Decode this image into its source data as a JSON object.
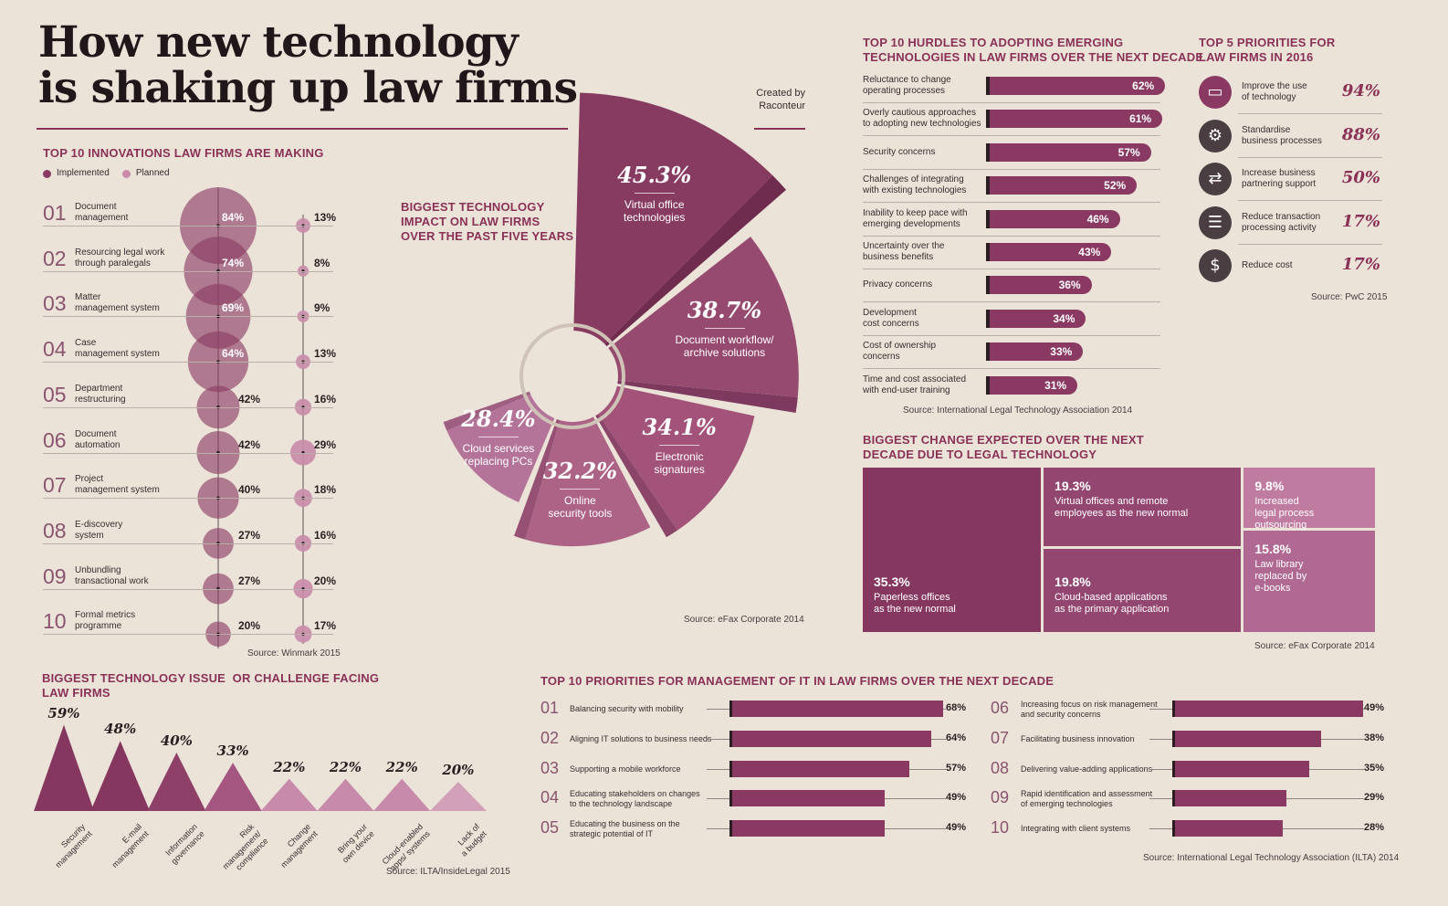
{
  "title_line1": "How new technology",
  "title_line2": "is shaking up law firms",
  "credit_line1": "Created by",
  "credit_line2": "Raconteur",
  "colors": {
    "dark": "#8a3a62",
    "mid": "#a5577f",
    "light": "#c98aab",
    "bg": "#ebe3d8"
  },
  "innovations": {
    "title": "Top 10 innovations law firms are making",
    "legend_implemented": "Implemented",
    "legend_planned": "Planned",
    "source": "Source: Winmark 2015",
    "items": [
      {
        "num": "01",
        "l1": "Document",
        "l2": "management",
        "imp": "84%",
        "plan": "13%"
      },
      {
        "num": "02",
        "l1": "Resourcing legal work",
        "l2": "through paralegals",
        "imp": "74%",
        "plan": "8%"
      },
      {
        "num": "03",
        "l1": "Matter",
        "l2": "management system",
        "imp": "69%",
        "plan": "9%"
      },
      {
        "num": "04",
        "l1": "Case",
        "l2": "management system",
        "imp": "64%",
        "plan": "13%"
      },
      {
        "num": "05",
        "l1": "Department",
        "l2": "restructuring",
        "imp": "42%",
        "plan": "16%"
      },
      {
        "num": "06",
        "l1": "Document",
        "l2": "automation",
        "imp": "42%",
        "plan": "29%"
      },
      {
        "num": "07",
        "l1": "Project",
        "l2": "management system",
        "imp": "40%",
        "plan": "18%"
      },
      {
        "num": "08",
        "l1": "E-discovery",
        "l2": "system",
        "imp": "27%",
        "plan": "16%"
      },
      {
        "num": "09",
        "l1": "Unbundling",
        "l2": "transactional work",
        "imp": "27%",
        "plan": "20%"
      },
      {
        "num": "10",
        "l1": "Formal metrics",
        "l2": "programme",
        "imp": "20%",
        "plan": "17%"
      }
    ]
  },
  "impact": {
    "title_l1": "Biggest technology",
    "title_l2": "impact on law firms",
    "title_l3": "over the past five years",
    "source": "Source: eFax Corporate 2014",
    "slices": [
      {
        "value": "45.3%",
        "l1": "Virtual office",
        "l2": "technologies"
      },
      {
        "value": "38.7%",
        "l1": "Document workflow/",
        "l2": "archive solutions"
      },
      {
        "value": "34.1%",
        "l1": "Electronic",
        "l2": "signatures"
      },
      {
        "value": "32.2%",
        "l1": "Online",
        "l2": "security tools"
      },
      {
        "value": "28.4%",
        "l1": "Cloud services",
        "l2": "replacing PCs"
      }
    ]
  },
  "hurdles": {
    "title_l1": "Top 10 hurdles to adopting emerging",
    "title_l2": "technologies in law firms over the next decade",
    "source": "Source: International Legal Technology Association 2014",
    "items": [
      {
        "l1": "Reluctance to change",
        "l2": "operating processes",
        "label": "62%"
      },
      {
        "l1": "Overly cautious approaches",
        "l2": "to adopting new technologies",
        "label": "61%"
      },
      {
        "l1": "Security concerns",
        "l2": "",
        "label": "57%"
      },
      {
        "l1": "Challenges of integrating",
        "l2": "with existing technologies",
        "label": "52%"
      },
      {
        "l1": "Inability to keep pace with",
        "l2": "emerging developments",
        "label": "46%"
      },
      {
        "l1": "Uncertainty over the",
        "l2": "business benefits",
        "label": "43%"
      },
      {
        "l1": "Privacy concerns",
        "l2": "",
        "label": "36%"
      },
      {
        "l1": "Development",
        "l2": "cost concerns",
        "label": "34%"
      },
      {
        "l1": "Cost of ownership",
        "l2": "concerns",
        "label": "33%"
      },
      {
        "l1": "Time and cost associated",
        "l2": "with end-user training",
        "label": "31%"
      }
    ]
  },
  "priorities2016": {
    "title_l1": "Top 5 priorities for",
    "title_l2": "law firms in 2016",
    "source": "Source: PwC 2015",
    "items": [
      {
        "icon": "presentation-icon",
        "l1": "Improve the use",
        "l2": "of technology",
        "value": "94%"
      },
      {
        "icon": "gear-icon",
        "l1": "Standardise",
        "l2": "business processes",
        "value": "88%"
      },
      {
        "icon": "handshake-icon",
        "l1": "Increase business",
        "l2": "partnering support",
        "value": "50%"
      },
      {
        "icon": "document-icon",
        "l1": "Reduce transaction",
        "l2": "processing activity",
        "value": "17%"
      },
      {
        "icon": "money-bag-icon",
        "l1": "Reduce cost",
        "l2": "",
        "value": "17%"
      }
    ]
  },
  "change": {
    "title_l1": "Biggest change expected over the next",
    "title_l2": "decade due to legal technology",
    "source": "Source: eFax Corporate 2014",
    "tiles": [
      {
        "value": "35.3%",
        "l1": "Paperless offices",
        "l2": "as the new normal",
        "l3": ""
      },
      {
        "value": "19.3%",
        "l1": "Virtual offices and remote",
        "l2": "employees as the new normal",
        "l3": ""
      },
      {
        "value": "19.8%",
        "l1": "Cloud-based applications",
        "l2": "as the primary application",
        "l3": ""
      },
      {
        "value": "9.8%",
        "l1": "Increased",
        "l2": "legal process",
        "l3": "outsourcing"
      },
      {
        "value": "15.8%",
        "l1": "Law library",
        "l2": "replaced by",
        "l3": "e-books"
      }
    ]
  },
  "issues": {
    "title_l1": "Biggest technology issue  or challenge facing",
    "title_l2": "law firms",
    "source": "Source: ILTA/InsideLegal 2015",
    "items": [
      {
        "value": "59%",
        "l1": "Security",
        "l2": "management",
        "l3": ""
      },
      {
        "value": "48%",
        "l1": "E-mail",
        "l2": "management",
        "l3": ""
      },
      {
        "value": "40%",
        "l1": "Information",
        "l2": "governance",
        "l3": ""
      },
      {
        "value": "33%",
        "l1": "Risk",
        "l2": "management/",
        "l3": "compliance"
      },
      {
        "value": "22%",
        "l1": "Change",
        "l2": "management",
        "l3": ""
      },
      {
        "value": "22%",
        "l1": "Bring your",
        "l2": "own device",
        "l3": ""
      },
      {
        "value": "22%",
        "l1": "Cloud-enabled",
        "l2": "apps/ systems",
        "l3": ""
      },
      {
        "value": "20%",
        "l1": "Lack of",
        "l2": "a budget",
        "l3": ""
      }
    ]
  },
  "it_priorities": {
    "title": "Top 10 priorities for management of IT in law firms over the next decade",
    "source": "Source: International Legal Technology Association (ILTA) 2014",
    "items": [
      {
        "num": "01",
        "l1": "Balancing security with mobility",
        "l2": "",
        "label": "68%"
      },
      {
        "num": "02",
        "l1": "Aligning IT solutions to business needs",
        "l2": "",
        "label": "64%"
      },
      {
        "num": "03",
        "l1": "Supporting a mobile workforce",
        "l2": "",
        "label": "57%"
      },
      {
        "num": "04",
        "l1": "Educating stakeholders on changes",
        "l2": "to the technology landscape",
        "label": "49%"
      },
      {
        "num": "05",
        "l1": "Educating the business on the",
        "l2": "strategic potential of IT",
        "label": "49%"
      },
      {
        "num": "06",
        "l1": "Increasing focus on risk management",
        "l2": "and security concerns",
        "label": "49%"
      },
      {
        "num": "07",
        "l1": "Facilitating business innovation",
        "l2": "",
        "label": "38%"
      },
      {
        "num": "08",
        "l1": "Delivering value-adding applications",
        "l2": "",
        "label": "35%"
      },
      {
        "num": "09",
        "l1": "Rapid identification and assessment",
        "l2": "of emerging technologies",
        "label": "29%"
      },
      {
        "num": "10",
        "l1": "Integrating with client systems",
        "l2": "",
        "label": "28%"
      }
    ]
  },
  "chart_data": [
    {
      "type": "scatter",
      "title": "Top 10 innovations law firms are making",
      "categories": [
        "Document management",
        "Resourcing legal work through paralegals",
        "Matter management system",
        "Case management system",
        "Department restructuring",
        "Document automation",
        "Project management system",
        "E-discovery system",
        "Unbundling transactional work",
        "Formal metrics programme"
      ],
      "series": [
        {
          "name": "Implemented",
          "values": [
            84,
            74,
            69,
            64,
            42,
            42,
            40,
            27,
            27,
            20
          ]
        },
        {
          "name": "Planned",
          "values": [
            13,
            8,
            9,
            13,
            16,
            29,
            18,
            16,
            20,
            17
          ]
        }
      ]
    },
    {
      "type": "pie",
      "title": "Biggest technology impact on law firms over the past five years",
      "categories": [
        "Virtual office technologies",
        "Document workflow/ archive solutions",
        "Electronic signatures",
        "Online security tools",
        "Cloud services replacing PCs"
      ],
      "values": [
        45.3,
        38.7,
        34.1,
        32.2,
        28.4
      ]
    },
    {
      "type": "bar",
      "title": "Top 10 hurdles to adopting emerging technologies in law firms over the next decade",
      "categories": [
        "Reluctance to change operating processes",
        "Overly cautious approaches to adopting new technologies",
        "Security concerns",
        "Challenges of integrating with existing technologies",
        "Inability to keep pace with emerging developments",
        "Uncertainty over the business benefits",
        "Privacy concerns",
        "Development cost concerns",
        "Cost of ownership concerns",
        "Time and cost associated with end-user training"
      ],
      "values": [
        62,
        61,
        57,
        52,
        46,
        43,
        36,
        34,
        33,
        31
      ]
    },
    {
      "type": "table",
      "title": "Top 5 priorities for law firms in 2016",
      "categories": [
        "Improve the use of technology",
        "Standardise business processes",
        "Increase business partnering support",
        "Reduce transaction processing activity",
        "Reduce cost"
      ],
      "values": [
        94,
        88,
        50,
        17,
        17
      ]
    },
    {
      "type": "heatmap",
      "title": "Biggest change expected over the next decade due to legal technology",
      "categories": [
        "Paperless offices as the new normal",
        "Virtual offices and remote employees as the new normal",
        "Cloud-based applications as the primary application",
        "Increased legal process outsourcing",
        "Law library replaced by e-books"
      ],
      "values": [
        35.3,
        19.3,
        19.8,
        9.8,
        15.8
      ]
    },
    {
      "type": "bar",
      "title": "Biggest technology issue  or challenge facing law firms",
      "categories": [
        "Security management",
        "E-mail management",
        "Information governance",
        "Risk management/ compliance",
        "Change management",
        "Bring your own device",
        "Cloud-enabled apps/ systems",
        "Lack of a budget"
      ],
      "values": [
        59,
        48,
        40,
        33,
        22,
        22,
        22,
        20
      ]
    },
    {
      "type": "bar",
      "title": "Top 10 priorities for management of IT in law firms over the next decade",
      "categories": [
        "Balancing security with mobility",
        "Aligning IT solutions to business needs",
        "Supporting a mobile workforce",
        "Educating stakeholders on changes to the technology landscape",
        "Educating the business on the strategic potential of IT",
        "Increasing focus on risk management and security concerns",
        "Facilitating business innovation",
        "Delivering value-adding applications",
        "Rapid identification and assessment of emerging technologies",
        "Integrating with client systems"
      ],
      "values": [
        68,
        64,
        57,
        49,
        49,
        49,
        38,
        35,
        29,
        28
      ]
    }
  ]
}
